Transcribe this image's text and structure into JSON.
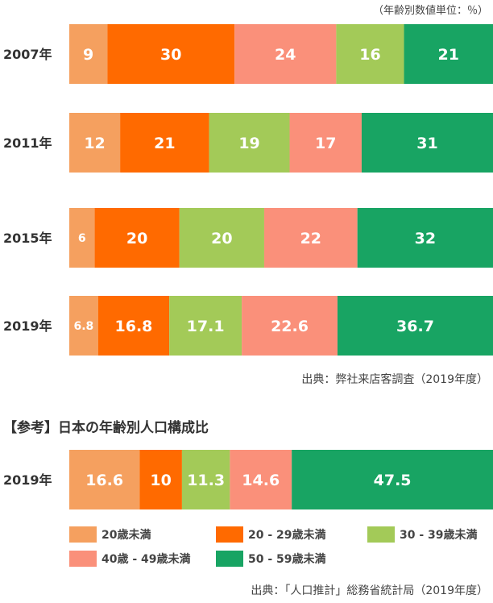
{
  "unit_note": "（年齢別数値単位：％）",
  "source_1": "出典：弊社来店客調査（2019年度）",
  "reference_title": "【参考】日本の年齢別人口構成比",
  "source_2": "出典：「人口推計」総務省統計局（2019年度）",
  "colors": {
    "age20under": "#F5A05F",
    "age20_29": "#FF6A00",
    "age30_39": "#A3CA58",
    "age40_49": "#FA907A",
    "age50_59": "#18A463",
    "bar_text": "#ffffff"
  },
  "legend": [
    {
      "key": "age20under",
      "label": "20歳未満"
    },
    {
      "key": "age20_29",
      "label": "20 - 29歳未満"
    },
    {
      "key": "age30_39",
      "label": "30 - 39歳未満"
    },
    {
      "key": "age40_49",
      "label": "40歳 - 49歳未満"
    },
    {
      "key": "age50_59",
      "label": "50 - 59歳未満"
    }
  ],
  "chart_data": [
    {
      "type": "bar",
      "orientation": "horizontal",
      "stacked": "percent",
      "categories": [
        "2007年",
        "2011年",
        "2015年",
        "2019年"
      ],
      "series": [
        {
          "name": "20歳未満",
          "key": "age20under",
          "values": [
            9,
            12,
            6,
            6.8
          ]
        },
        {
          "name": "20 - 29歳未満",
          "key": "age20_29",
          "values": [
            30,
            21,
            20,
            16.8
          ]
        },
        {
          "name": "30 - 39歳未満",
          "key": "age30_39",
          "values": [
            16,
            19,
            20,
            17.1
          ]
        },
        {
          "name": "40歳 - 49歳未満",
          "key": "age40_49",
          "values": [
            24,
            17,
            22,
            22.6
          ]
        },
        {
          "name": "50 - 59歳未満",
          "key": "age50_59",
          "values": [
            21,
            31,
            32,
            36.7
          ]
        }
      ],
      "segment_order": [
        [
          "age20under",
          "age20_29",
          "age40_49",
          "age30_39",
          "age50_59"
        ],
        [
          "age20under",
          "age20_29",
          "age30_39",
          "age40_49",
          "age50_59"
        ],
        [
          "age20under",
          "age20_29",
          "age30_39",
          "age40_49",
          "age50_59"
        ],
        [
          "age20under",
          "age20_29",
          "age30_39",
          "age40_49",
          "age50_59"
        ]
      ],
      "value_labels": [
        [
          "9",
          "30",
          "24",
          "16",
          "21"
        ],
        [
          "12",
          "21",
          "19",
          "17",
          "31"
        ],
        [
          "6",
          "20",
          "20",
          "22",
          "32"
        ],
        [
          "6.8",
          "16.8",
          "17.1",
          "22.6",
          "36.7"
        ]
      ]
    },
    {
      "type": "bar",
      "orientation": "horizontal",
      "stacked": "percent",
      "categories": [
        "2019年"
      ],
      "series": [
        {
          "name": "20歳未満",
          "key": "age20under",
          "values": [
            16.6
          ]
        },
        {
          "name": "20 - 29歳未満",
          "key": "age20_29",
          "values": [
            10
          ]
        },
        {
          "name": "30 - 39歳未満",
          "key": "age30_39",
          "values": [
            11.3
          ]
        },
        {
          "name": "40歳 - 49歳未満",
          "key": "age40_49",
          "values": [
            14.6
          ]
        },
        {
          "name": "50 - 59歳未満",
          "key": "age50_59",
          "values": [
            47.5
          ]
        }
      ],
      "segment_order": [
        [
          "age20under",
          "age20_29",
          "age30_39",
          "age40_49",
          "age50_59"
        ]
      ],
      "value_labels": [
        [
          "16.6",
          "10",
          "11.3",
          "14.6",
          "47.5"
        ]
      ]
    }
  ]
}
